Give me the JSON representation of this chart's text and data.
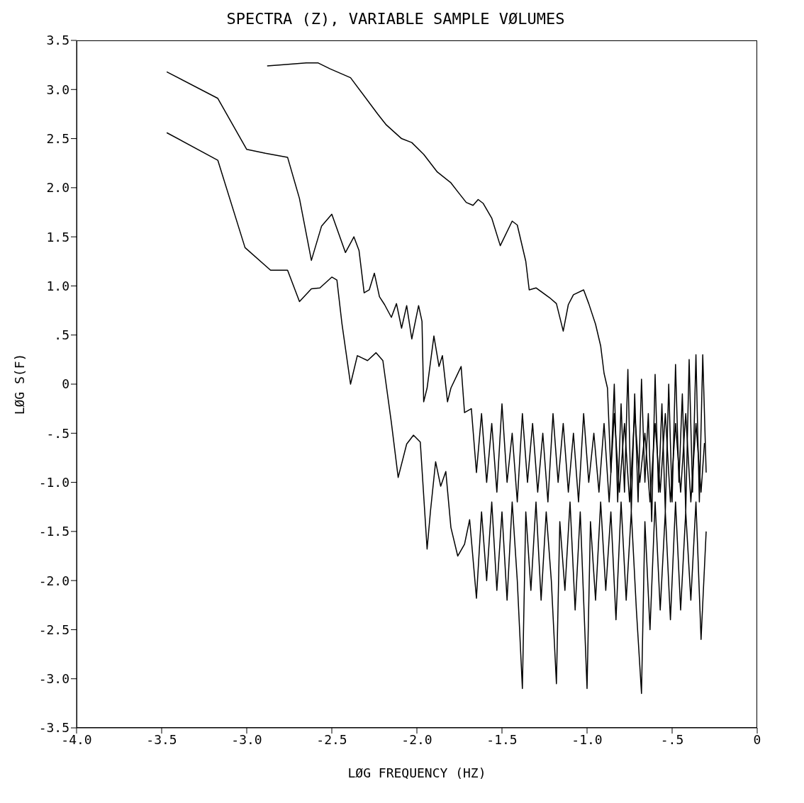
{
  "chart_data": {
    "type": "line",
    "title": "SPECTRA (Z), VARIABLE SAMPLE VØLUMES",
    "xlabel": "LØG FREQUENCY (HZ)",
    "ylabel": "LØG S(F)",
    "xlim": [
      -4,
      0
    ],
    "xticks": [
      {
        "value": -4,
        "label": "-4.0"
      },
      {
        "value": -3.5,
        "label": "-3.5"
      },
      {
        "value": -3,
        "label": "-3.0"
      },
      {
        "value": -2.5,
        "label": "-2.5"
      },
      {
        "value": -2,
        "label": "-2.0"
      },
      {
        "value": -1.5,
        "label": "-1.5"
      },
      {
        "value": -1,
        "label": "-1.0"
      },
      {
        "value": -0.5,
        "label": "-.5"
      },
      0
    ],
    "ylim": [
      -3.5,
      3.5
    ],
    "yticks": [
      {
        "value": -3.5,
        "label": "-3.5"
      },
      {
        "value": -3,
        "label": "-3.0"
      },
      {
        "value": -2.5,
        "label": "-2.5"
      },
      {
        "value": -2,
        "label": "-2.0"
      },
      {
        "value": -1.5,
        "label": "-1.5"
      },
      {
        "value": -1,
        "label": "-1.0"
      },
      {
        "value": -0.5,
        "label": "-.5"
      },
      0,
      {
        "value": 0.5,
        "label": ".5"
      },
      {
        "value": 1,
        "label": "1.0"
      },
      {
        "value": 1.5,
        "label": "1.5"
      },
      {
        "value": 2,
        "label": "2.0"
      },
      {
        "value": 2.5,
        "label": "2.5"
      },
      {
        "value": 3,
        "label": "3.0"
      },
      {
        "value": 3.5,
        "label": "3.5"
      }
    ],
    "grid": false,
    "legend": false,
    "marker": "none",
    "line_style": "solid",
    "series": [
      {
        "color": "#000000",
        "x": [
          -2.88,
          -2.81,
          -2.65,
          -2.58,
          -2.51,
          -2.39,
          -2.23,
          -2.18,
          -2.09,
          -2.03,
          -1.96,
          -1.88,
          -1.8,
          -1.76,
          -1.71,
          -1.67,
          -1.64,
          -1.61,
          -1.56,
          -1.51,
          -1.44,
          -1.41,
          -1.36,
          -1.34,
          -1.3,
          -1.22,
          -1.18,
          -1.14,
          -1.11,
          -1.08,
          -1.02,
          -0.99,
          -0.95,
          -0.92,
          -0.9,
          -0.88,
          -0.86,
          -0.84,
          -0.82,
          -0.8,
          -0.78,
          -0.76,
          -0.74,
          -0.72,
          -0.7,
          -0.68,
          -0.66,
          -0.64,
          -0.62,
          -0.6,
          -0.58,
          -0.56,
          -0.54,
          -0.52,
          -0.5,
          -0.48,
          -0.46,
          -0.44,
          -0.42,
          -0.4,
          -0.38,
          -0.36,
          -0.34,
          -0.32,
          -0.3
        ],
        "values": [
          3.24,
          3.25,
          3.27,
          3.27,
          3.21,
          3.12,
          2.75,
          2.64,
          2.5,
          2.46,
          2.34,
          2.16,
          2.05,
          1.96,
          1.85,
          1.82,
          1.88,
          1.84,
          1.69,
          1.41,
          1.66,
          1.62,
          1.25,
          0.96,
          0.98,
          0.88,
          0.82,
          0.54,
          0.81,
          0.91,
          0.96,
          0.82,
          0.61,
          0.39,
          0.11,
          -0.04,
          -0.9,
          0.0,
          -1.2,
          -0.2,
          -1.1,
          0.15,
          -1.3,
          -0.1,
          -1.2,
          0.05,
          -1.0,
          -0.3,
          -1.4,
          0.1,
          -1.1,
          -0.2,
          -1.3,
          0.0,
          -1.2,
          0.2,
          -1.0,
          -0.1,
          -1.3,
          0.25,
          -1.1,
          0.3,
          -1.2,
          0.3,
          -0.9
        ]
      },
      {
        "color": "#000000",
        "x": [
          -3.47,
          -3.17,
          -3.0,
          -2.89,
          -2.76,
          -2.69,
          -2.62,
          -2.56,
          -2.5,
          -2.42,
          -2.37,
          -2.34,
          -2.31,
          -2.28,
          -2.25,
          -2.22,
          -2.19,
          -2.15,
          -2.12,
          -2.09,
          -2.06,
          -2.03,
          -1.99,
          -1.97,
          -1.96,
          -1.94,
          -1.9,
          -1.87,
          -1.85,
          -1.82,
          -1.8,
          -1.74,
          -1.72,
          -1.68,
          -1.65,
          -1.62,
          -1.59,
          -1.56,
          -1.53,
          -1.5,
          -1.47,
          -1.44,
          -1.41,
          -1.38,
          -1.35,
          -1.32,
          -1.29,
          -1.26,
          -1.23,
          -1.2,
          -1.17,
          -1.14,
          -1.11,
          -1.08,
          -1.05,
          -1.02,
          -0.99,
          -0.96,
          -0.93,
          -0.9,
          -0.87,
          -0.84,
          -0.81,
          -0.78,
          -0.75,
          -0.72,
          -0.69,
          -0.66,
          -0.63,
          -0.6,
          -0.57,
          -0.54,
          -0.51,
          -0.48,
          -0.45,
          -0.42,
          -0.39,
          -0.36,
          -0.33,
          -0.31
        ],
        "values": [
          3.18,
          2.91,
          2.39,
          2.35,
          2.31,
          1.89,
          1.26,
          1.61,
          1.73,
          1.34,
          1.5,
          1.36,
          0.93,
          0.96,
          1.13,
          0.89,
          0.81,
          0.68,
          0.82,
          0.57,
          0.8,
          0.46,
          0.8,
          0.64,
          -0.18,
          -0.04,
          0.49,
          0.18,
          0.29,
          -0.18,
          -0.04,
          0.18,
          -0.29,
          -0.25,
          -0.9,
          -0.3,
          -1.0,
          -0.4,
          -1.1,
          -0.2,
          -1.0,
          -0.5,
          -1.2,
          -0.3,
          -1.0,
          -0.4,
          -1.1,
          -0.5,
          -1.2,
          -0.3,
          -1.0,
          -0.4,
          -1.1,
          -0.5,
          -1.2,
          -0.3,
          -1.0,
          -0.5,
          -1.1,
          -0.4,
          -1.2,
          -0.3,
          -1.1,
          -0.4,
          -1.2,
          -0.3,
          -1.0,
          -0.5,
          -1.2,
          -0.4,
          -1.1,
          -0.3,
          -1.2,
          -0.4,
          -1.1,
          -0.3,
          -1.2,
          -0.4,
          -1.1,
          -0.6
        ]
      },
      {
        "color": "#000000",
        "x": [
          -3.47,
          -3.17,
          -3.01,
          -2.86,
          -2.76,
          -2.69,
          -2.62,
          -2.57,
          -2.5,
          -2.47,
          -2.44,
          -2.39,
          -2.35,
          -2.29,
          -2.24,
          -2.2,
          -2.15,
          -2.11,
          -2.06,
          -2.02,
          -1.98,
          -1.94,
          -1.92,
          -1.89,
          -1.86,
          -1.83,
          -1.8,
          -1.76,
          -1.72,
          -1.69,
          -1.65,
          -1.62,
          -1.59,
          -1.56,
          -1.53,
          -1.5,
          -1.47,
          -1.44,
          -1.41,
          -1.38,
          -1.36,
          -1.33,
          -1.3,
          -1.27,
          -1.24,
          -1.21,
          -1.18,
          -1.16,
          -1.13,
          -1.1,
          -1.07,
          -1.04,
          -1.0,
          -0.98,
          -0.95,
          -0.92,
          -0.89,
          -0.86,
          -0.83,
          -0.8,
          -0.77,
          -0.74,
          -0.71,
          -0.68,
          -0.66,
          -0.63,
          -0.6,
          -0.57,
          -0.54,
          -0.51,
          -0.48,
          -0.45,
          -0.42,
          -0.39,
          -0.36,
          -0.33,
          -0.3
        ],
        "values": [
          2.56,
          2.28,
          1.39,
          1.16,
          1.16,
          0.84,
          0.97,
          0.98,
          1.09,
          1.06,
          0.61,
          0.0,
          0.29,
          0.24,
          0.32,
          0.24,
          -0.39,
          -0.95,
          -0.61,
          -0.52,
          -0.59,
          -1.68,
          -1.29,
          -0.79,
          -1.04,
          -0.89,
          -1.46,
          -1.75,
          -1.63,
          -1.38,
          -2.18,
          -1.3,
          -2.0,
          -1.2,
          -2.1,
          -1.3,
          -2.2,
          -1.2,
          -2.0,
          -3.1,
          -1.3,
          -2.1,
          -1.2,
          -2.2,
          -1.3,
          -2.0,
          -3.05,
          -1.4,
          -2.1,
          -1.2,
          -2.3,
          -1.3,
          -3.1,
          -1.4,
          -2.2,
          -1.2,
          -2.1,
          -1.3,
          -2.4,
          -1.2,
          -2.2,
          -1.3,
          -2.3,
          -3.15,
          -1.4,
          -2.5,
          -1.2,
          -2.3,
          -1.3,
          -2.4,
          -1.2,
          -2.3,
          -1.3,
          -2.2,
          -1.2,
          -2.6,
          -1.5
        ]
      }
    ]
  }
}
